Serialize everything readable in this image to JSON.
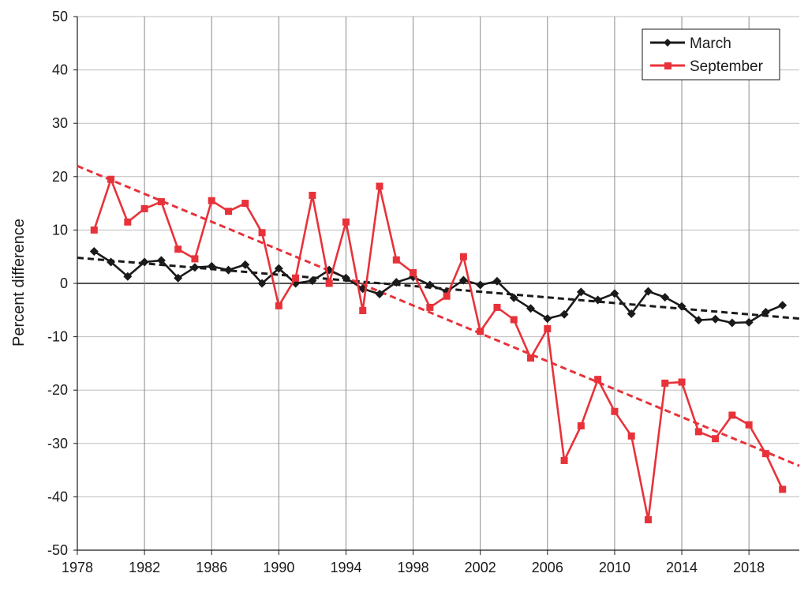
{
  "chart_data": {
    "type": "line",
    "title": "",
    "xlabel": "",
    "ylabel": "Percent difference",
    "xlim": [
      1978,
      2021
    ],
    "ylim": [
      -50,
      50
    ],
    "x_ticks": [
      1978,
      1982,
      1986,
      1990,
      1994,
      1998,
      2002,
      2006,
      2010,
      2014,
      2018
    ],
    "y_ticks": [
      50,
      40,
      30,
      20,
      10,
      0,
      -10,
      -20,
      -30,
      -40,
      -50
    ],
    "grid": true,
    "legend_position": "top-right",
    "x": [
      1979,
      1980,
      1981,
      1982,
      1983,
      1984,
      1985,
      1986,
      1987,
      1988,
      1989,
      1990,
      1991,
      1992,
      1993,
      1994,
      1995,
      1996,
      1997,
      1998,
      1999,
      2000,
      2001,
      2002,
      2003,
      2004,
      2005,
      2006,
      2007,
      2008,
      2009,
      2010,
      2011,
      2012,
      2013,
      2014,
      2015,
      2016,
      2017,
      2018,
      2019,
      2020
    ],
    "series": [
      {
        "name": "March",
        "color": "#1a1a1a",
        "marker": "diamond",
        "values": [
          6.0,
          4.0,
          1.3,
          4.0,
          4.3,
          1.0,
          3.0,
          3.2,
          2.5,
          3.5,
          0.0,
          2.8,
          0.0,
          0.5,
          2.5,
          1.0,
          -1.0,
          -2.0,
          0.2,
          1.2,
          -0.3,
          -1.5,
          0.6,
          -0.3,
          0.4,
          -2.7,
          -4.7,
          -6.6,
          -5.8,
          -1.6,
          -3.1,
          -1.9,
          -5.7,
          -1.5,
          -2.6,
          -4.3,
          -6.9,
          -6.7,
          -7.4,
          -7.3,
          -5.4,
          -4.1
        ]
      },
      {
        "name": "September",
        "color": "#e8323a",
        "marker": "square",
        "values": [
          10.0,
          19.5,
          11.5,
          14.0,
          15.3,
          6.4,
          4.6,
          15.5,
          13.5,
          15.0,
          9.5,
          -4.2,
          1.0,
          16.5,
          0.0,
          11.5,
          -5.1,
          18.2,
          4.4,
          2.0,
          -4.5,
          -2.4,
          5.0,
          -9.0,
          -4.5,
          -6.8,
          -14.0,
          -8.5,
          -33.2,
          -26.7,
          -18.0,
          -24.0,
          -28.6,
          -44.3,
          -18.7,
          -18.5,
          -27.8,
          -29.1,
          -24.7,
          -26.5,
          -31.9,
          -38.6
        ]
      }
    ],
    "trendlines": [
      {
        "series": "March",
        "color": "#1a1a1a",
        "style": "dashed",
        "start": [
          1978,
          4.8
        ],
        "end": [
          2021,
          -6.6
        ]
      },
      {
        "series": "September",
        "color": "#e8323a",
        "style": "dashed",
        "start": [
          1978,
          22.0
        ],
        "end": [
          2021,
          -34.2
        ]
      }
    ]
  }
}
